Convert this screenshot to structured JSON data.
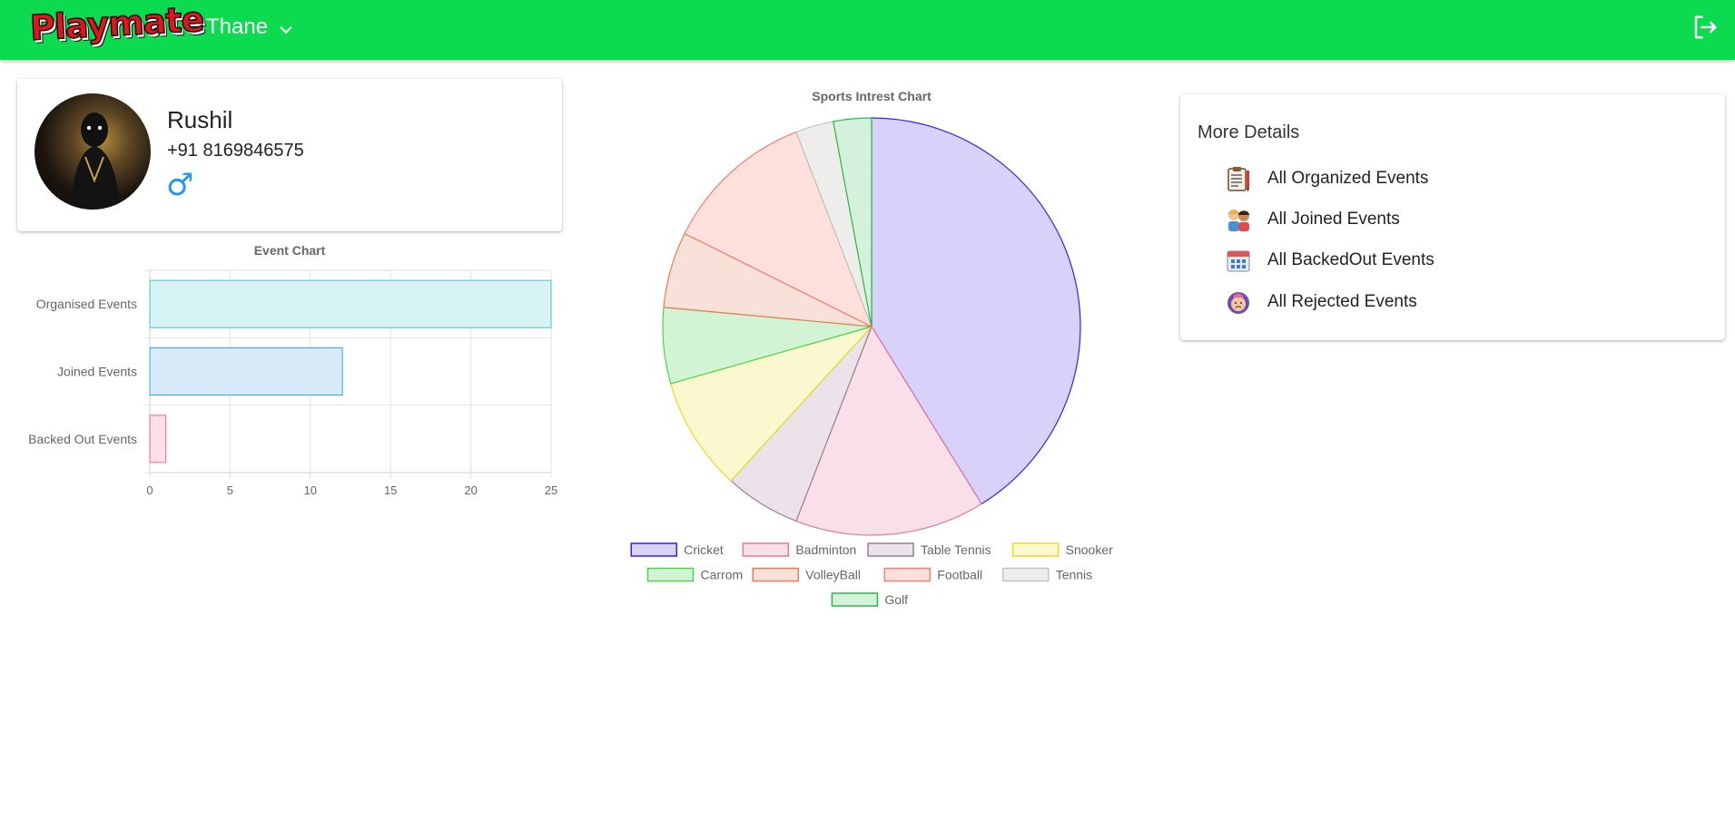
{
  "header": {
    "logo_text": "Playmate",
    "city": "Thane",
    "brand_color": "#0cdb50"
  },
  "profile": {
    "name": "Rushil",
    "phone": "+91 8169846575",
    "gender_symbol": "♂"
  },
  "more_details": {
    "title": "More Details",
    "items": [
      {
        "label": "All Organized Events",
        "icon": "clipboard-icon"
      },
      {
        "label": "All Joined Events",
        "icon": "people-icon"
      },
      {
        "label": "All BackedOut Events",
        "icon": "calendar-icon"
      },
      {
        "label": "All Rejected Events",
        "icon": "sad-face-icon"
      }
    ]
  },
  "chart_data": [
    {
      "type": "bar",
      "orientation": "horizontal",
      "title": "Event Chart",
      "categories": [
        "Organised Events",
        "Joined Events",
        "Backed Out Events"
      ],
      "values": [
        25,
        12,
        1
      ],
      "xlim": [
        0,
        25
      ],
      "xticks": [
        0,
        5,
        10,
        15,
        20,
        25
      ],
      "grid": true,
      "colors": [
        {
          "fill": "#d8f3f3",
          "stroke": "#4bc0c0"
        },
        {
          "fill": "#d7ebfa",
          "stroke": "#36a2eb"
        },
        {
          "fill": "#ffe0e6",
          "stroke": "#ff6384"
        }
      ]
    },
    {
      "type": "pie",
      "title": "Sports Intrest Chart",
      "legend_position": "bottom",
      "labels": [
        "Cricket",
        "Badminton",
        "Table Tennis",
        "Snooker",
        "Carrom",
        "VolleyBall",
        "Football",
        "Tennis",
        "Golf"
      ],
      "values": [
        14,
        5,
        2,
        3,
        2,
        2,
        4,
        1,
        1
      ],
      "colors": [
        {
          "fill": "#d8d2fb",
          "stroke": "#3a1fe8"
        },
        {
          "fill": "#f8dfe8",
          "stroke": "#e0799e"
        },
        {
          "fill": "#ebe3e9",
          "stroke": "#9b7f93"
        },
        {
          "fill": "#fbf8cf",
          "stroke": "#ebdc24"
        },
        {
          "fill": "#d3f3d5",
          "stroke": "#4bd34b"
        },
        {
          "fill": "#f8e1d9",
          "stroke": "#ee7a50"
        },
        {
          "fill": "#fde0dc",
          "stroke": "#f07f74"
        },
        {
          "fill": "#ededeb",
          "stroke": "#c2c2bf"
        },
        {
          "fill": "#d4f1db",
          "stroke": "#2fb546"
        }
      ]
    }
  ]
}
